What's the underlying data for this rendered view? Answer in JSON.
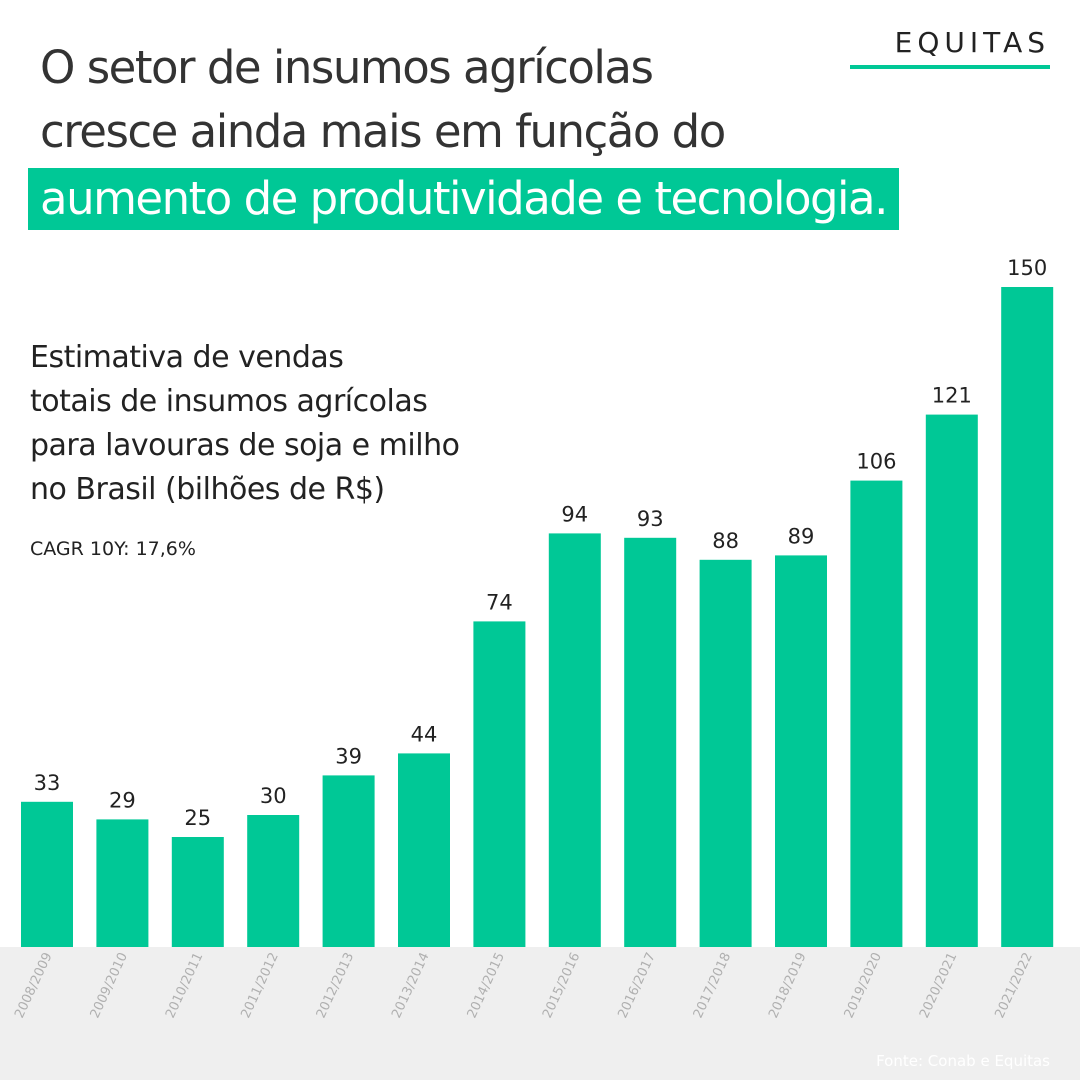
{
  "brand": {
    "logo": "EQUITAS",
    "accent": "#00c896"
  },
  "headline": {
    "line1": "O setor de insumos agrícolas",
    "line2": "cresce ainda mais em função do",
    "line3": "aumento de produtividade e tecnologia."
  },
  "subtitle": {
    "line1": "Estimativa de vendas",
    "line2": "totais de insumos agrícolas",
    "line3": "para lavouras de soja e milho",
    "line4": "no Brasil (bilhões de R$)"
  },
  "cagr": "CAGR 10Y: 17,6%",
  "source": "Fonte: Conab e Equitas",
  "chart_data": {
    "type": "bar",
    "categories": [
      "2008/2009",
      "2009/2010",
      "2010/2011",
      "2011/2012",
      "2012/2013",
      "2013/2014",
      "2014/2015",
      "2015/2016",
      "2016/2017",
      "2017/2018",
      "2018/2019",
      "2019/2020",
      "2020/2021",
      "2021/2022"
    ],
    "values": [
      33,
      29,
      25,
      30,
      39,
      44,
      74,
      94,
      93,
      88,
      89,
      106,
      121,
      150
    ],
    "ylim": [
      0,
      150
    ],
    "grid": false,
    "bar_color": "#00c896"
  }
}
